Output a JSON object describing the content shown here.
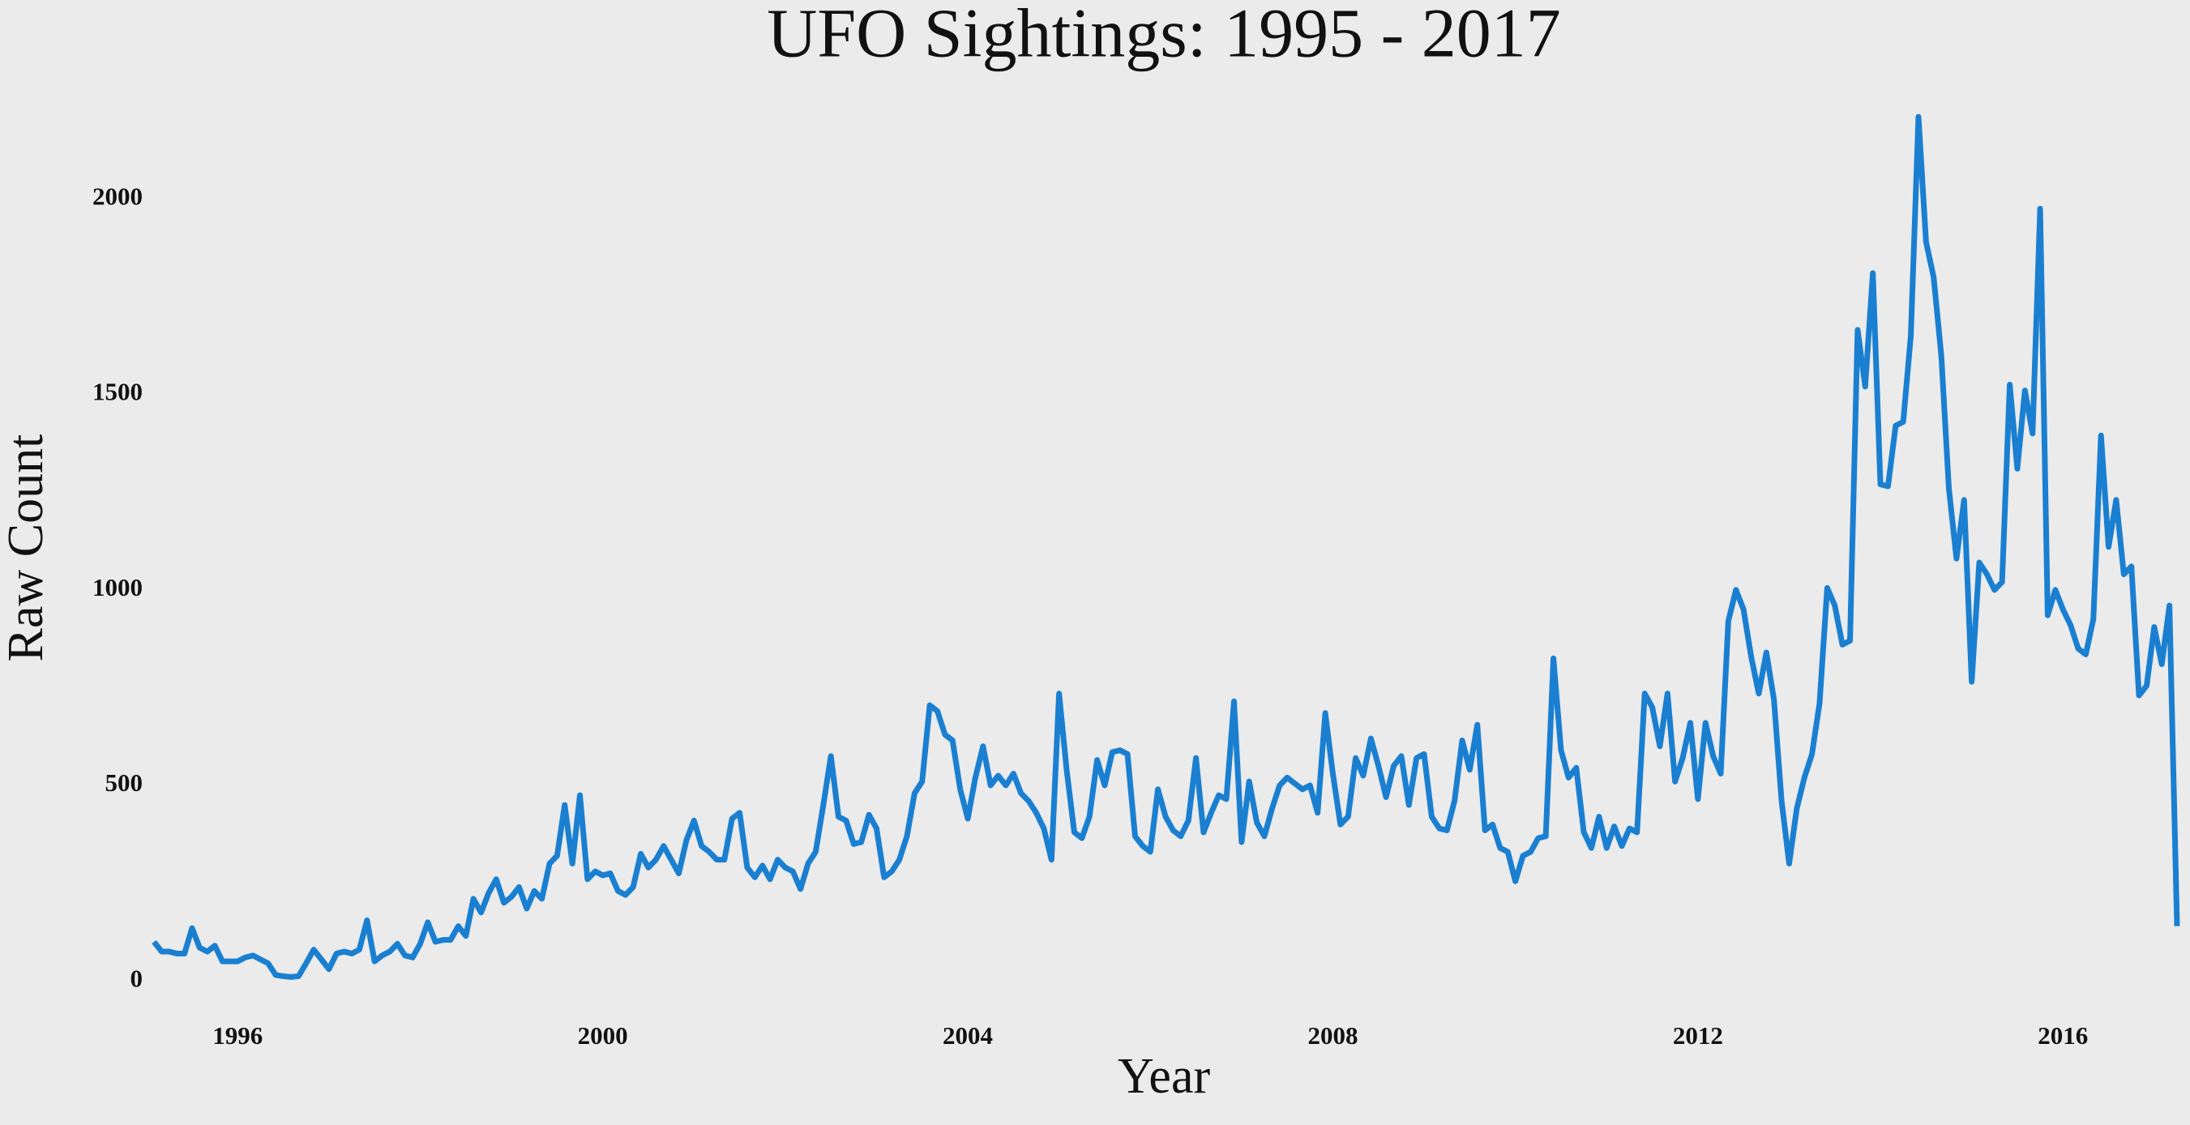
{
  "chart_data": {
    "type": "line",
    "title": "UFO Sightings: 1995 - 2017",
    "x_label": "Year",
    "y_label": "Raw Count",
    "color": "#1a7fd0",
    "grid": false,
    "x": [
      1995.083,
      1995.167,
      1995.25,
      1995.333,
      1995.417,
      1995.5,
      1995.583,
      1995.667,
      1995.75,
      1995.833,
      1995.917,
      1996,
      1996.083,
      1996.167,
      1996.25,
      1996.333,
      1996.417,
      1996.5,
      1996.583,
      1996.667,
      1996.75,
      1996.833,
      1996.917,
      1997,
      1997.083,
      1997.167,
      1997.25,
      1997.333,
      1997.417,
      1997.5,
      1997.583,
      1997.667,
      1997.75,
      1997.833,
      1997.917,
      1998,
      1998.083,
      1998.167,
      1998.25,
      1998.333,
      1998.417,
      1998.5,
      1998.583,
      1998.667,
      1998.75,
      1998.833,
      1998.917,
      1999,
      1999.083,
      1999.167,
      1999.25,
      1999.333,
      1999.417,
      1999.5,
      1999.583,
      1999.667,
      1999.75,
      1999.833,
      1999.917,
      2000,
      2000.083,
      2000.167,
      2000.25,
      2000.333,
      2000.417,
      2000.5,
      2000.583,
      2000.667,
      2000.75,
      2000.833,
      2000.917,
      2001,
      2001.083,
      2001.167,
      2001.25,
      2001.333,
      2001.417,
      2001.5,
      2001.583,
      2001.667,
      2001.75,
      2001.833,
      2001.917,
      2002,
      2002.083,
      2002.167,
      2002.25,
      2002.333,
      2002.417,
      2002.5,
      2002.583,
      2002.667,
      2002.75,
      2002.833,
      2002.917,
      2003,
      2003.083,
      2003.167,
      2003.25,
      2003.333,
      2003.417,
      2003.5,
      2003.583,
      2003.667,
      2003.75,
      2003.833,
      2003.917,
      2004,
      2004.083,
      2004.167,
      2004.25,
      2004.333,
      2004.417,
      2004.5,
      2004.583,
      2004.667,
      2004.75,
      2004.833,
      2004.917,
      2005,
      2005.083,
      2005.167,
      2005.25,
      2005.333,
      2005.417,
      2005.5,
      2005.583,
      2005.667,
      2005.75,
      2005.833,
      2005.917,
      2006,
      2006.083,
      2006.167,
      2006.25,
      2006.333,
      2006.417,
      2006.5,
      2006.583,
      2006.667,
      2006.75,
      2006.833,
      2006.917,
      2007,
      2007.083,
      2007.167,
      2007.25,
      2007.333,
      2007.417,
      2007.5,
      2007.583,
      2007.667,
      2007.75,
      2007.833,
      2007.917,
      2008,
      2008.083,
      2008.167,
      2008.25,
      2008.333,
      2008.417,
      2008.5,
      2008.583,
      2008.667,
      2008.75,
      2008.833,
      2008.917,
      2009,
      2009.083,
      2009.167,
      2009.25,
      2009.333,
      2009.417,
      2009.5,
      2009.583,
      2009.667,
      2009.75,
      2009.833,
      2009.917,
      2010,
      2010.083,
      2010.167,
      2010.25,
      2010.333,
      2010.417,
      2010.5,
      2010.583,
      2010.667,
      2010.75,
      2010.833,
      2010.917,
      2011,
      2011.083,
      2011.167,
      2011.25,
      2011.333,
      2011.417,
      2011.5,
      2011.583,
      2011.667,
      2011.75,
      2011.833,
      2011.917,
      2012,
      2012.083,
      2012.167,
      2012.25,
      2012.333,
      2012.417,
      2012.5,
      2012.583,
      2012.667,
      2012.75,
      2012.833,
      2012.917,
      2013,
      2013.083,
      2013.167,
      2013.25,
      2013.333,
      2013.417,
      2013.5,
      2013.583,
      2013.667,
      2013.75,
      2013.833,
      2013.917,
      2014,
      2014.083,
      2014.167,
      2014.25,
      2014.333,
      2014.417,
      2014.5,
      2014.583,
      2014.667,
      2014.75,
      2014.833,
      2014.917,
      2015,
      2015.083,
      2015.167,
      2015.25,
      2015.333,
      2015.417,
      2015.5,
      2015.583,
      2015.667,
      2015.75,
      2015.833,
      2015.917,
      2016,
      2016.083,
      2016.167,
      2016.25,
      2016.333,
      2016.417,
      2016.5,
      2016.583,
      2016.667,
      2016.75,
      2016.833,
      2016.917,
      2017,
      2017.083,
      2017.167,
      2017.25
    ],
    "values": [
      100,
      75,
      75,
      70,
      70,
      135,
      85,
      75,
      90,
      50,
      50,
      50,
      60,
      65,
      55,
      45,
      15,
      12,
      10,
      12,
      45,
      80,
      55,
      30,
      70,
      75,
      70,
      80,
      155,
      50,
      65,
      75,
      95,
      65,
      60,
      95,
      150,
      100,
      105,
      105,
      140,
      115,
      210,
      175,
      225,
      260,
      200,
      215,
      240,
      185,
      230,
      210,
      300,
      320,
      450,
      300,
      475,
      260,
      280,
      270,
      275,
      230,
      220,
      240,
      325,
      290,
      310,
      345,
      310,
      275,
      360,
      410,
      345,
      330,
      310,
      310,
      415,
      430,
      290,
      265,
      295,
      260,
      310,
      290,
      280,
      235,
      300,
      330,
      450,
      575,
      420,
      410,
      350,
      355,
      425,
      390,
      265,
      280,
      310,
      370,
      480,
      510,
      705,
      690,
      630,
      615,
      490,
      415,
      520,
      600,
      500,
      525,
      500,
      530,
      480,
      460,
      430,
      390,
      310,
      735,
      540,
      380,
      365,
      420,
      565,
      500,
      585,
      590,
      580,
      370,
      345,
      330,
      490,
      420,
      385,
      370,
      410,
      570,
      380,
      430,
      475,
      465,
      715,
      355,
      510,
      405,
      370,
      440,
      500,
      520,
      505,
      490,
      500,
      430,
      685,
      530,
      400,
      420,
      570,
      525,
      620,
      550,
      470,
      550,
      575,
      450,
      570,
      580,
      420,
      390,
      385,
      460,
      615,
      540,
      655,
      385,
      400,
      340,
      330,
      255,
      320,
      330,
      365,
      370,
      825,
      590,
      520,
      545,
      380,
      340,
      420,
      340,
      395,
      345,
      390,
      380,
      735,
      700,
      600,
      735,
      510,
      570,
      660,
      465,
      660,
      575,
      530,
      920,
      1000,
      950,
      830,
      735,
      840,
      720,
      460,
      300,
      440,
      520,
      580,
      710,
      1005,
      960,
      860,
      870,
      1665,
      1520,
      1810,
      1270,
      1265,
      1420,
      1430,
      1650,
      2210,
      1890,
      1800,
      1600,
      1260,
      1080,
      1230,
      765,
      1070,
      1040,
      1000,
      1020,
      1525,
      1310,
      1510,
      1400,
      1975,
      935,
      1000,
      950,
      910,
      850,
      835,
      925,
      1395,
      1110,
      1230,
      1040,
      1060,
      730,
      755,
      905,
      810,
      960,
      140
    ],
    "xlim": [
      1995.083,
      2017.25
    ],
    "xticks": [
      1996,
      2000,
      2004,
      2008,
      2012,
      2016
    ],
    "ylim": [
      -70,
      2320
    ],
    "yticks": [
      0,
      500,
      1000,
      1500,
      2000
    ]
  }
}
